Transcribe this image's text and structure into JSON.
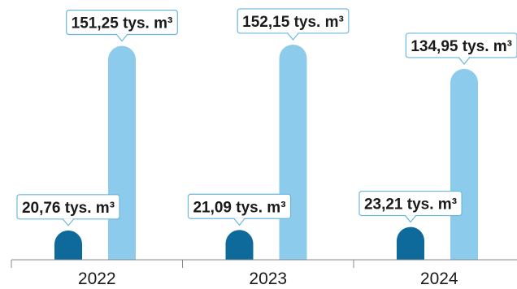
{
  "chart_data": {
    "type": "bar",
    "categories": [
      "2022",
      "2023",
      "2024"
    ],
    "series": [
      {
        "values": [
          20.76,
          21.09,
          23.21
        ],
        "color": "#0f6a9c"
      },
      {
        "values": [
          151.25,
          152.15,
          134.95
        ],
        "color": "#8ccbeb"
      }
    ],
    "value_labels": [
      [
        "20,76 tys. m³",
        "21,09 tys. m³",
        "23,21 tys. m³"
      ],
      [
        "151,25 tys. m³",
        "152,15 tys. m³",
        "134,95 tys. m³"
      ]
    ],
    "ylim": [
      0,
      160
    ],
    "grid": false,
    "legend": "none",
    "colors": {
      "axis": "#888888",
      "callout_border": "#6bb8de",
      "text": "#1a1a1a"
    }
  }
}
